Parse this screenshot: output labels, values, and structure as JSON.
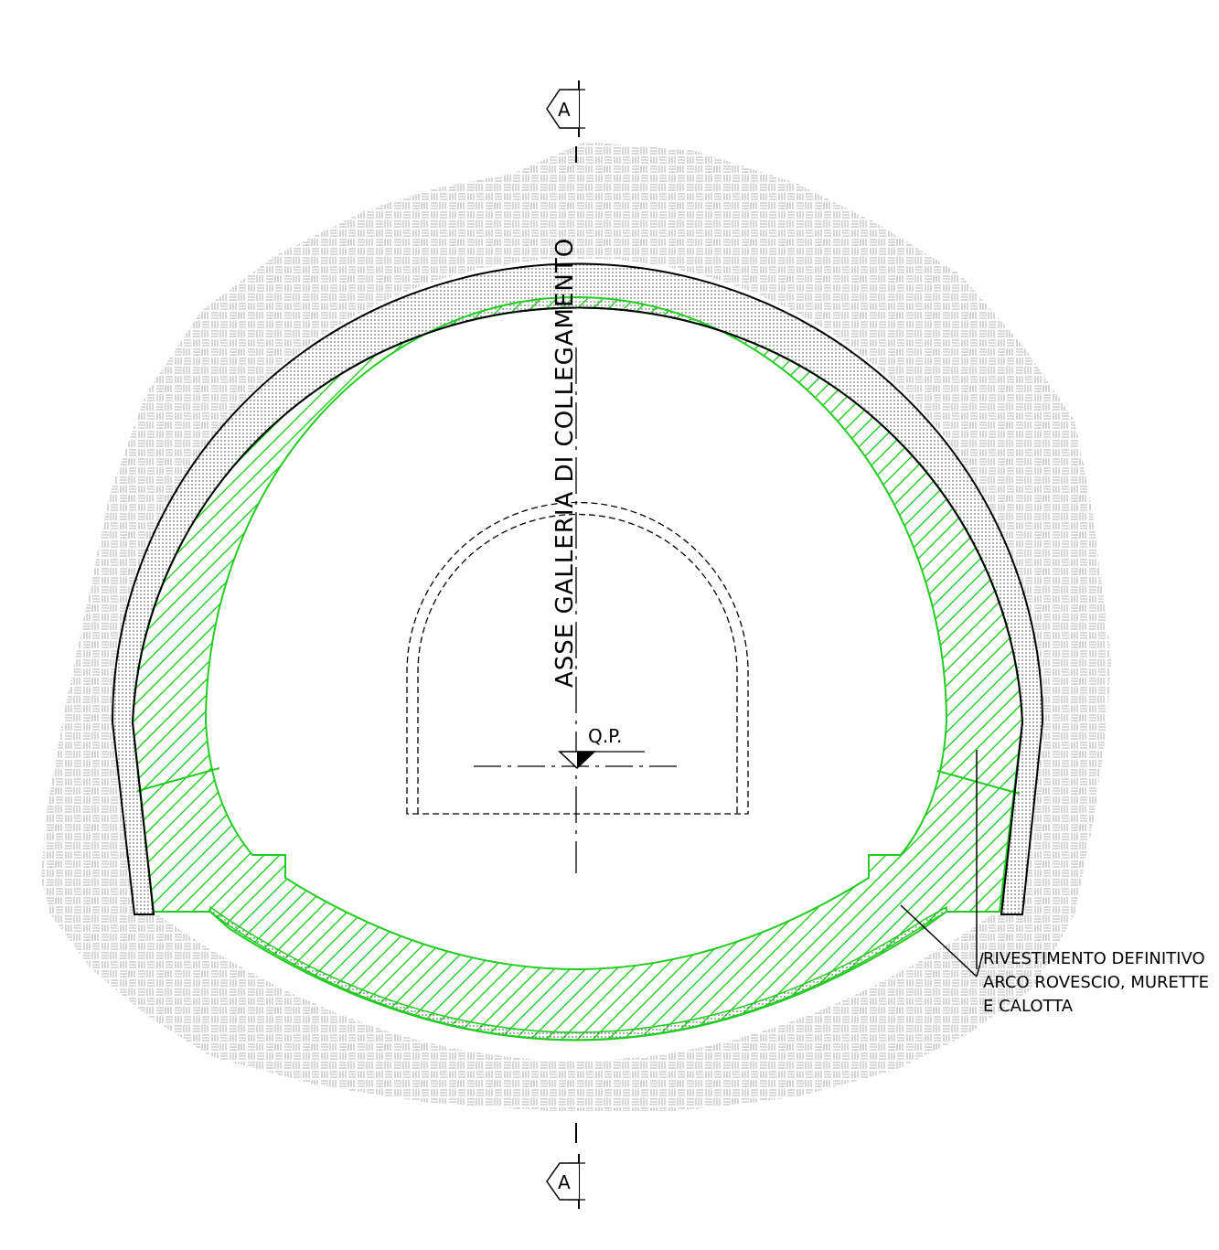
{
  "section_marker_top": {
    "letter": "A"
  },
  "section_marker_bottom": {
    "letter": "A"
  },
  "axis_label": "ASSE GALLERIA DI COLLEGAMENTO",
  "level_label": "Q.P.",
  "callout": {
    "line1": "RIVESTIMENTO DEFINITIVO",
    "line2": "ARCO ROVESCIO, MURETTE",
    "line3": "E CALOTTA"
  },
  "colors": {
    "lining": "#22cc22",
    "ground": "#9a9a9a",
    "lines": "#000000"
  }
}
